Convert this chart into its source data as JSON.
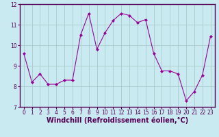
{
  "x": [
    0,
    1,
    2,
    3,
    4,
    5,
    6,
    7,
    8,
    9,
    10,
    11,
    12,
    13,
    14,
    15,
    16,
    17,
    18,
    19,
    20,
    21,
    22,
    23
  ],
  "y": [
    9.6,
    8.2,
    8.6,
    8.1,
    8.1,
    8.3,
    8.3,
    10.5,
    11.55,
    9.8,
    10.6,
    11.2,
    11.55,
    11.45,
    11.1,
    11.25,
    9.6,
    8.75,
    8.75,
    8.6,
    7.3,
    7.75,
    8.55,
    10.45
  ],
  "line_color": "#990099",
  "marker": "D",
  "marker_size": 2,
  "bg_color": "#c8eaf0",
  "grid_color": "#aacccc",
  "xlabel": "Windchill (Refroidissement éolien,°C)",
  "ylabel": "",
  "title": "",
  "xlim": [
    -0.5,
    23.5
  ],
  "ylim": [
    7.0,
    12.0
  ],
  "yticks": [
    7,
    8,
    9,
    10,
    11,
    12
  ],
  "xticks": [
    0,
    1,
    2,
    3,
    4,
    5,
    6,
    7,
    8,
    9,
    10,
    11,
    12,
    13,
    14,
    15,
    16,
    17,
    18,
    19,
    20,
    21,
    22,
    23
  ],
  "tick_fontsize": 5.5,
  "xlabel_fontsize": 7.0,
  "spine_color": "#550055",
  "tick_color": "#550055"
}
